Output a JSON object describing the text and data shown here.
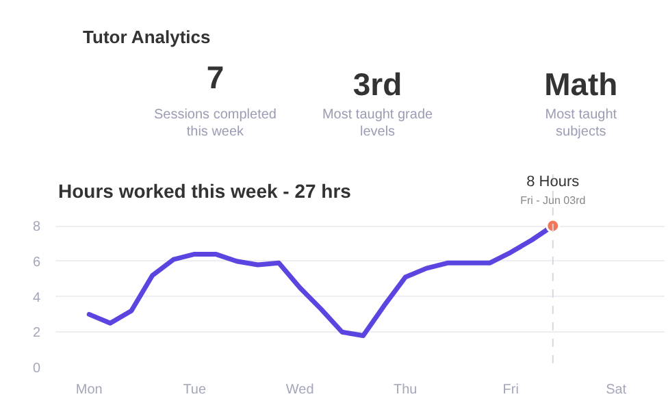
{
  "chart_data": {
    "type": "line",
    "title": "Hours worked this week - 27 hrs",
    "annotations": [
      "Tutor Analytics",
      "7",
      "Sessions completed this week",
      "3rd",
      "Most taught grade levels",
      "Math",
      "Most taught subjects",
      {
        "text": "8 Hours",
        "y": 8
      },
      {
        "text": "Fri - Jun 03rd",
        "y": 8
      }
    ],
    "categories": [
      "Mon",
      null,
      null,
      null,
      null,
      "Tue",
      null,
      null,
      null,
      null,
      "Wed",
      null,
      null,
      null,
      null,
      "Thu",
      null,
      null,
      null,
      null,
      "Fri",
      null,
      null,
      null,
      null,
      "Sat"
    ],
    "series": [
      {
        "color": "#5b45e0",
        "values": [
          3.0,
          2.5,
          3.2,
          5.2,
          6.1,
          6.4,
          6.4,
          6.0,
          5.8,
          5.9,
          4.5,
          3.3,
          2.0,
          1.8,
          3.5,
          5.1,
          5.6,
          5.9,
          5.9,
          5.9,
          6.5,
          7.2,
          8,
          null,
          null,
          null
        ]
      }
    ],
    "ylim": [
      0,
      10.9
    ],
    "yticks": [
      0,
      2,
      4,
      6,
      8
    ],
    "grid": "y",
    "line_style": "solid"
  }
}
